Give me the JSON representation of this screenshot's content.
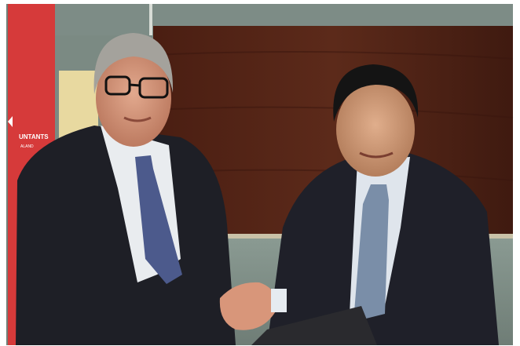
{
  "banner": {
    "text": "UNTANTS",
    "subtext": "ALAND"
  }
}
